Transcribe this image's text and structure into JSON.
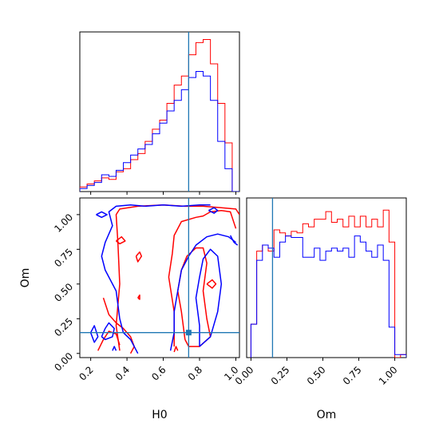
{
  "chart_data": {
    "type": "corner",
    "parameters": [
      "H0",
      "Om"
    ],
    "truth": {
      "H0": 0.74,
      "Om": 0.15
    },
    "truth_color": "#1f77b4",
    "series": [
      {
        "color": "#ff0000"
      },
      {
        "color": "#0000ff"
      }
    ],
    "h0_hist": {
      "xlim": [
        0.14,
        1.02
      ],
      "ylim": [
        0,
        1.05
      ],
      "xticks": [
        0.2,
        0.4,
        0.6,
        0.8,
        1.0
      ],
      "edges": [
        0.1,
        0.14,
        0.18,
        0.22,
        0.26,
        0.3,
        0.34,
        0.38,
        0.42,
        0.46,
        0.5,
        0.54,
        0.58,
        0.62,
        0.66,
        0.7,
        0.74,
        0.78,
        0.82,
        0.86,
        0.9,
        0.94,
        0.98,
        1.02
      ],
      "red": [
        0.0,
        0.03,
        0.05,
        0.07,
        0.09,
        0.08,
        0.13,
        0.15,
        0.21,
        0.25,
        0.33,
        0.41,
        0.47,
        0.58,
        0.7,
        0.76,
        0.9,
        0.98,
        1.0,
        0.84,
        0.58,
        0.32,
        0.0
      ],
      "blue": [
        0.0,
        0.02,
        0.04,
        0.06,
        0.11,
        0.1,
        0.14,
        0.19,
        0.24,
        0.28,
        0.31,
        0.38,
        0.45,
        0.53,
        0.6,
        0.67,
        0.75,
        0.79,
        0.76,
        0.6,
        0.33,
        0.15,
        0.0
      ]
    },
    "om_hist": {
      "xlim": [
        -0.03,
        1.08
      ],
      "ylim": [
        0,
        1.05
      ],
      "xticks": [
        0.0,
        0.25,
        0.5,
        0.75,
        1.0
      ],
      "tick_labels": [
        "0.00",
        "0.25",
        "0.50",
        "0.75",
        "1.00"
      ],
      "edges": [
        0.0,
        0.04,
        0.08,
        0.12,
        0.16,
        0.2,
        0.24,
        0.28,
        0.32,
        0.36,
        0.4,
        0.44,
        0.48,
        0.52,
        0.56,
        0.6,
        0.64,
        0.68,
        0.72,
        0.76,
        0.8,
        0.84,
        0.88,
        0.92,
        0.96,
        1.0,
        1.04,
        1.08
      ],
      "red": [
        0.22,
        0.7,
        0.74,
        0.7,
        0.84,
        0.82,
        0.8,
        0.83,
        0.82,
        0.88,
        0.86,
        0.91,
        0.91,
        0.96,
        0.89,
        0.91,
        0.86,
        0.93,
        0.86,
        0.93,
        0.86,
        0.91,
        0.86,
        0.97,
        0.76,
        0.0,
        0.02
      ],
      "blue": [
        0.22,
        0.64,
        0.74,
        0.72,
        0.66,
        0.76,
        0.8,
        0.79,
        0.79,
        0.66,
        0.66,
        0.72,
        0.64,
        0.7,
        0.72,
        0.7,
        0.72,
        0.66,
        0.8,
        0.76,
        0.7,
        0.66,
        0.74,
        0.64,
        0.2,
        0.02,
        0.02
      ]
    },
    "scatter_2d": {
      "xlabel": "H0",
      "ylabel": "Om",
      "xlim": [
        0.14,
        1.02
      ],
      "ylim": [
        -0.03,
        1.12
      ],
      "xticks": [
        0.2,
        0.4,
        0.6,
        0.8,
        1.0
      ],
      "xtick_labels": [
        "0.2",
        "0.4",
        "0.6",
        "0.8",
        "1.0"
      ],
      "yticks": [
        0.0,
        0.25,
        0.5,
        0.75,
        1.0
      ],
      "ytick_labels": [
        "0.00",
        "0.25",
        "0.50",
        "0.75",
        "1.00"
      ],
      "red_contours": [
        [
          [
            0.36,
            0.02
          ],
          [
            0.34,
            0.2
          ],
          [
            0.36,
            0.5
          ],
          [
            0.35,
            0.8
          ],
          [
            0.34,
            1.0
          ],
          [
            0.36,
            1.04
          ],
          [
            0.46,
            1.06
          ],
          [
            0.6,
            1.07
          ],
          [
            0.72,
            1.06
          ],
          [
            0.82,
            1.06
          ],
          [
            0.92,
            1.05
          ],
          [
            1.0,
            1.04
          ],
          [
            1.02,
            1.0
          ]
        ],
        [
          [
            0.66,
            0.05
          ],
          [
            0.66,
            0.3
          ],
          [
            0.63,
            0.55
          ],
          [
            0.65,
            0.72
          ],
          [
            0.66,
            0.85
          ],
          [
            0.7,
            0.95
          ],
          [
            0.78,
            0.98
          ],
          [
            0.82,
            0.99
          ],
          [
            0.86,
            1.02
          ],
          [
            0.92,
            1.03
          ],
          [
            0.97,
            1.02
          ],
          [
            1.0,
            0.9
          ]
        ],
        [
          [
            0.72,
            0.1
          ],
          [
            0.7,
            0.3
          ],
          [
            0.68,
            0.45
          ],
          [
            0.7,
            0.6
          ],
          [
            0.73,
            0.7
          ],
          [
            0.78,
            0.76
          ],
          [
            0.82,
            0.76
          ],
          [
            0.84,
            0.65
          ],
          [
            0.82,
            0.45
          ],
          [
            0.84,
            0.25
          ],
          [
            0.86,
            0.12
          ],
          [
            0.8,
            0.05
          ],
          [
            0.74,
            0.05
          ],
          [
            0.72,
            0.1
          ]
        ],
        [
          [
            0.27,
            0.4
          ],
          [
            0.3,
            0.28
          ],
          [
            0.34,
            0.22
          ],
          [
            0.38,
            0.18
          ],
          [
            0.42,
            0.12
          ],
          [
            0.44,
            0.05
          ],
          [
            0.42,
            0.0
          ]
        ],
        [
          [
            0.24,
            0.02
          ],
          [
            0.27,
            0.1
          ],
          [
            0.3,
            0.16
          ],
          [
            0.34,
            0.14
          ],
          [
            0.36,
            0.06
          ]
        ],
        [
          [
            0.84,
            0.5
          ],
          [
            0.87,
            0.53
          ],
          [
            0.89,
            0.5
          ],
          [
            0.87,
            0.47
          ],
          [
            0.84,
            0.5
          ]
        ],
        [
          [
            0.45,
            0.7
          ],
          [
            0.47,
            0.73
          ],
          [
            0.48,
            0.7
          ],
          [
            0.46,
            0.66
          ],
          [
            0.45,
            0.7
          ]
        ],
        [
          [
            0.34,
            0.81
          ],
          [
            0.37,
            0.84
          ],
          [
            0.39,
            0.81
          ],
          [
            0.36,
            0.79
          ],
          [
            0.34,
            0.81
          ]
        ],
        [
          [
            0.66,
            0.01
          ],
          [
            0.67,
            0.05
          ],
          [
            0.68,
            0.02
          ]
        ],
        [
          [
            0.46,
            0.4
          ],
          [
            0.47,
            0.42
          ],
          [
            0.47,
            0.39
          ],
          [
            0.46,
            0.4
          ]
        ]
      ],
      "blue_contours": [
        [
          [
            0.46,
            0.0
          ],
          [
            0.42,
            0.1
          ],
          [
            0.38,
            0.15
          ],
          [
            0.36,
            0.25
          ],
          [
            0.34,
            0.45
          ],
          [
            0.3,
            0.55
          ],
          [
            0.28,
            0.6
          ],
          [
            0.26,
            0.7
          ],
          [
            0.28,
            0.8
          ],
          [
            0.32,
            0.92
          ],
          [
            0.3,
            1.02
          ],
          [
            0.34,
            1.06
          ],
          [
            0.42,
            1.07
          ],
          [
            0.5,
            1.06
          ]
        ],
        [
          [
            0.5,
            1.06
          ],
          [
            0.6,
            1.07
          ],
          [
            0.7,
            1.06
          ],
          [
            0.8,
            1.07
          ],
          [
            0.86,
            1.07
          ]
        ],
        [
          [
            0.64,
            0.02
          ],
          [
            0.66,
            0.15
          ],
          [
            0.66,
            0.3
          ],
          [
            0.68,
            0.45
          ],
          [
            0.7,
            0.6
          ],
          [
            0.74,
            0.7
          ],
          [
            0.78,
            0.78
          ],
          [
            0.84,
            0.84
          ],
          [
            0.9,
            0.86
          ],
          [
            0.96,
            0.84
          ],
          [
            1.0,
            0.8
          ]
        ],
        [
          [
            0.8,
            0.05
          ],
          [
            0.8,
            0.2
          ],
          [
            0.78,
            0.4
          ],
          [
            0.8,
            0.55
          ],
          [
            0.82,
            0.68
          ],
          [
            0.86,
            0.75
          ],
          [
            0.9,
            0.7
          ],
          [
            0.92,
            0.5
          ],
          [
            0.9,
            0.3
          ],
          [
            0.86,
            0.12
          ],
          [
            0.8,
            0.05
          ]
        ],
        [
          [
            0.2,
            0.15
          ],
          [
            0.22,
            0.2
          ],
          [
            0.24,
            0.12
          ],
          [
            0.22,
            0.08
          ],
          [
            0.2,
            0.15
          ]
        ],
        [
          [
            0.26,
            0.12
          ],
          [
            0.28,
            0.18
          ],
          [
            0.3,
            0.22
          ],
          [
            0.33,
            0.18
          ],
          [
            0.32,
            0.12
          ],
          [
            0.28,
            0.1
          ],
          [
            0.26,
            0.12
          ]
        ],
        [
          [
            0.32,
            0.02
          ],
          [
            0.33,
            0.05
          ],
          [
            0.34,
            0.02
          ]
        ],
        [
          [
            0.23,
            1.0
          ],
          [
            0.26,
            1.02
          ],
          [
            0.29,
            1.0
          ],
          [
            0.26,
            0.98
          ],
          [
            0.23,
            1.0
          ]
        ],
        [
          [
            0.85,
            1.03
          ],
          [
            0.88,
            1.05
          ],
          [
            0.9,
            1.03
          ],
          [
            0.88,
            1.01
          ],
          [
            0.85,
            1.03
          ]
        ],
        [
          [
            0.97,
            0.85
          ],
          [
            0.99,
            0.8
          ],
          [
            1.01,
            0.78
          ]
        ]
      ]
    }
  }
}
